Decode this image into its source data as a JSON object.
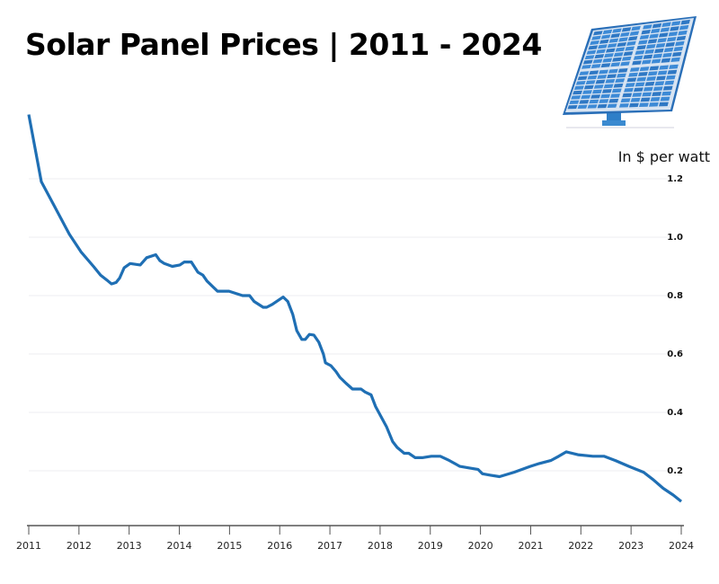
{
  "title": "Solar Panel Prices | 2011 - 2024",
  "unit_label": "In $ per watt",
  "icon": "solar-panel-icon",
  "colors": {
    "line": "#1f6fb4",
    "grid": "#ececf0",
    "axis": "#555555"
  },
  "chart_data": {
    "type": "line",
    "title": "Solar Panel Prices | 2011 - 2024",
    "ylabel": "In $ per watt",
    "xlim": [
      2011,
      2024
    ],
    "ylim": [
      0,
      1.45
    ],
    "grid": true,
    "x_ticks": [
      "2011",
      "2012",
      "2013",
      "2014",
      "2015",
      "2016",
      "2017",
      "2018",
      "2019",
      "2020",
      "2021",
      "2022",
      "2023",
      "2024"
    ],
    "y_ticks": [
      "0.2",
      "0.4",
      "0.6",
      "0.8",
      "1.0",
      "1.2"
    ],
    "series": [
      {
        "x": [
          2011.0,
          2011.25,
          2011.5,
          2011.81,
          2012.04,
          2012.29,
          2012.43,
          2012.58,
          2012.65,
          2012.74,
          2012.81,
          2012.9,
          2013.02,
          2013.22,
          2013.35,
          2013.53,
          2013.61,
          2013.7,
          2013.86,
          2014.01,
          2014.1,
          2014.24,
          2014.37,
          2014.47,
          2014.55,
          2014.76,
          2014.99,
          2015.26,
          2015.4,
          2015.49,
          2015.67,
          2015.74,
          2015.85,
          2016.07,
          2016.16,
          2016.26,
          2016.34,
          2016.44,
          2016.51,
          2016.59,
          2016.68,
          2016.78,
          2016.87,
          2016.91,
          2017.02,
          2017.12,
          2017.2,
          2017.32,
          2017.45,
          2017.62,
          2017.7,
          2017.82,
          2017.91,
          2018.13,
          2018.25,
          2018.34,
          2018.48,
          2018.57,
          2018.7,
          2018.84,
          2019.02,
          2019.2,
          2019.38,
          2019.59,
          2019.77,
          2019.95,
          2020.04,
          2020.2,
          2020.38,
          2020.67,
          2020.99,
          2021.17,
          2021.4,
          2021.56,
          2021.71,
          2021.94,
          2022.24,
          2022.46,
          2022.69,
          2022.96,
          2023.25,
          2023.44,
          2023.64,
          2023.84,
          2024.0
        ],
        "y": [
          1.42,
          1.19,
          1.11,
          1.01,
          0.95,
          0.9,
          0.87,
          0.85,
          0.84,
          0.845,
          0.86,
          0.895,
          0.91,
          0.905,
          0.93,
          0.94,
          0.92,
          0.91,
          0.9,
          0.905,
          0.915,
          0.915,
          0.88,
          0.87,
          0.85,
          0.815,
          0.815,
          0.8,
          0.8,
          0.78,
          0.76,
          0.76,
          0.77,
          0.795,
          0.78,
          0.735,
          0.68,
          0.65,
          0.65,
          0.667,
          0.665,
          0.64,
          0.6,
          0.57,
          0.56,
          0.54,
          0.52,
          0.5,
          0.48,
          0.48,
          0.47,
          0.46,
          0.42,
          0.35,
          0.3,
          0.28,
          0.26,
          0.26,
          0.245,
          0.245,
          0.25,
          0.25,
          0.235,
          0.215,
          0.21,
          0.205,
          0.19,
          0.185,
          0.18,
          0.195,
          0.215,
          0.225,
          0.235,
          0.25,
          0.265,
          0.255,
          0.25,
          0.25,
          0.235,
          0.215,
          0.195,
          0.17,
          0.14,
          0.117,
          0.095
        ]
      }
    ]
  }
}
